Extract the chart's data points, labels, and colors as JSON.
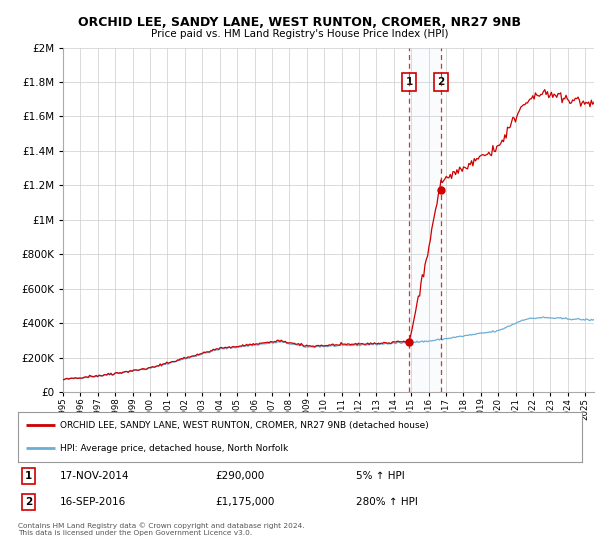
{
  "title": "ORCHID LEE, SANDY LANE, WEST RUNTON, CROMER, NR27 9NB",
  "subtitle": "Price paid vs. HM Land Registry's House Price Index (HPI)",
  "legend_line1": "ORCHID LEE, SANDY LANE, WEST RUNTON, CROMER, NR27 9NB (detached house)",
  "legend_line2": "HPI: Average price, detached house, North Norfolk",
  "transaction1_date": "17-NOV-2014",
  "transaction1_price": "£290,000",
  "transaction1_hpi": "5% ↑ HPI",
  "transaction1_year": 2014.88,
  "transaction1_value": 290000,
  "transaction2_date": "16-SEP-2016",
  "transaction2_price": "£1,175,000",
  "transaction2_hpi": "280% ↑ HPI",
  "transaction2_year": 2016.71,
  "transaction2_value": 1175000,
  "footer": "Contains HM Land Registry data © Crown copyright and database right 2024.\nThis data is licensed under the Open Government Licence v3.0.",
  "hpi_color": "#6baed6",
  "price_color": "#cc0000",
  "background_color": "#ffffff",
  "grid_color": "#cccccc",
  "ylim": [
    0,
    2000000
  ],
  "xlim_start": 1995.0,
  "xlim_end": 2025.5
}
